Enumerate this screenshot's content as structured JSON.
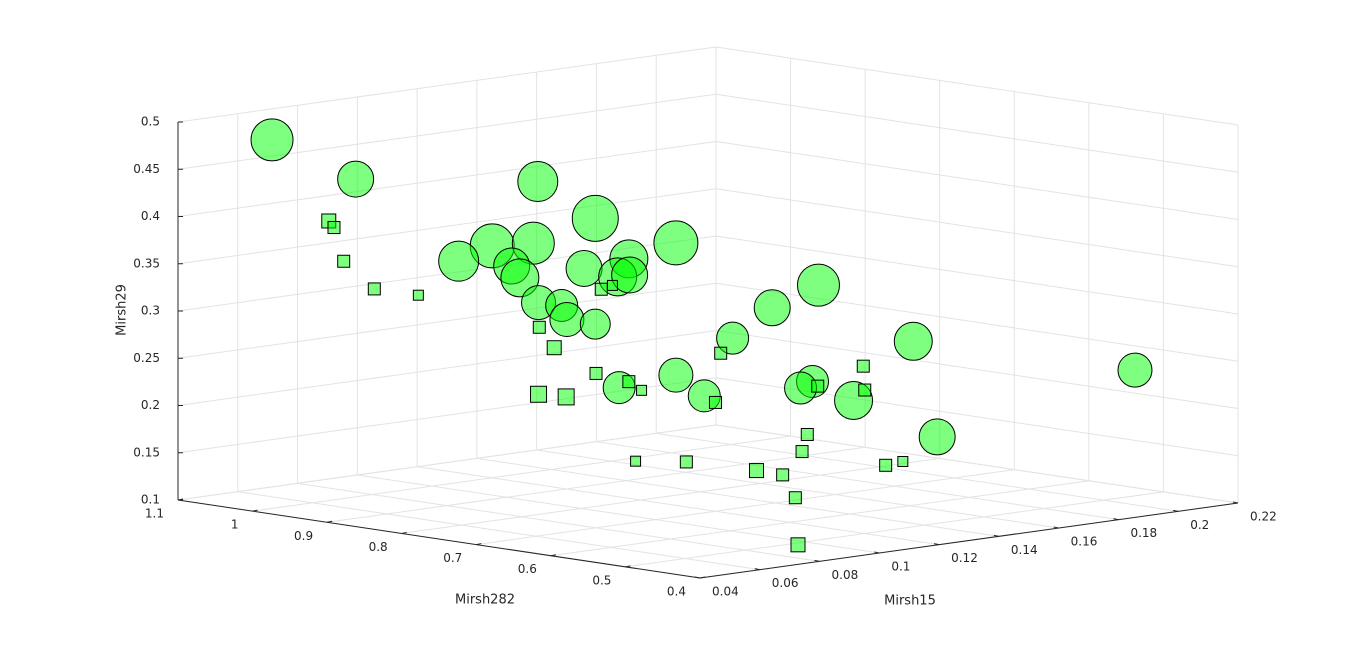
{
  "chart_data": {
    "type": "scatter3d",
    "xlabel": "Mirsh15",
    "ylabel": "Mirsh282",
    "zlabel": "Mirsh29",
    "xlim": [
      0.04,
      0.22
    ],
    "ylim": [
      0.4,
      1.1
    ],
    "zlim": [
      0.1,
      0.5
    ],
    "xticks": [
      0.04,
      0.06,
      0.08,
      0.1,
      0.12,
      0.14,
      0.16,
      0.18,
      0.2,
      0.22
    ],
    "yticks": [
      0.4,
      0.5,
      0.6,
      0.7,
      0.8,
      0.9,
      1,
      1.1
    ],
    "zticks": [
      0.1,
      0.15,
      0.2,
      0.25,
      0.3,
      0.35,
      0.4,
      0.45,
      0.5
    ],
    "grid": true,
    "series": [
      {
        "marker": "circle",
        "color": "#00ff00",
        "alpha": 0.5,
        "edgecolor": "#000000",
        "x": [
          0.052,
          0.067,
          0.099,
          0.109,
          0.091,
          0.098,
          0.123,
          0.085,
          0.115,
          0.094,
          0.107,
          0.096,
          0.113,
          0.115,
          0.148,
          0.14,
          0.099,
          0.103,
          0.104,
          0.109,
          0.133,
          0.165,
          0.123,
          0.113,
          0.147,
          0.145,
          0.128,
          0.154,
          0.204,
          0.169
        ],
        "y": [
          1.022,
          0.97,
          0.854,
          0.817,
          0.883,
          0.856,
          0.765,
          0.904,
          0.796,
          0.869,
          0.824,
          0.866,
          0.803,
          0.795,
          0.674,
          0.704,
          0.853,
          0.838,
          0.835,
          0.817,
          0.729,
          0.615,
          0.765,
          0.801,
          0.678,
          0.686,
          0.747,
          0.651,
          0.474,
          0.599
        ],
        "z": [
          0.485,
          0.443,
          0.44,
          0.401,
          0.372,
          0.375,
          0.375,
          0.356,
          0.358,
          0.351,
          0.348,
          0.338,
          0.339,
          0.341,
          0.33,
          0.306,
          0.312,
          0.309,
          0.294,
          0.289,
          0.274,
          0.27,
          0.235,
          0.222,
          0.228,
          0.221,
          0.213,
          0.208,
          0.239,
          0.169
        ],
        "sizes": [
          1764,
          1296,
          1600,
          2116,
          1936,
          1764,
          1936,
          1600,
          1444,
          1296,
          1296,
          1444,
          1444,
          1296,
          1764,
          1296,
          1156,
          1024,
          1156,
          900,
          1024,
          1444,
          1156,
          1024,
          1024,
          1024,
          1024,
          1444,
          1156,
          1296
        ]
      },
      {
        "marker": "square",
        "color": "#00ff00",
        "alpha": 0.5,
        "edgecolor": "#000000",
        "x": [
          0.062,
          0.063,
          0.065,
          0.07,
          0.078,
          0.112,
          0.11,
          0.099,
          0.102,
          0.131,
          0.109,
          0.115,
          0.117,
          0.099,
          0.104,
          0.13,
          0.156,
          0.148,
          0.156,
          0.146,
          0.145,
          0.116,
          0.125,
          0.137,
          0.142,
          0.144,
          0.091,
          0.16,
          0.163
        ],
        "y": [
          0.986,
          0.983,
          0.978,
          0.957,
          0.93,
          0.806,
          0.813,
          0.852,
          0.844,
          0.737,
          0.816,
          0.796,
          0.787,
          0.853,
          0.836,
          0.74,
          0.646,
          0.675,
          0.644,
          0.681,
          0.684,
          0.791,
          0.759,
          0.713,
          0.698,
          0.689,
          0.473,
          0.632,
          0.621
        ],
        "z": [
          0.399,
          0.392,
          0.356,
          0.327,
          0.32,
          0.33,
          0.326,
          0.286,
          0.264,
          0.258,
          0.237,
          0.228,
          0.219,
          0.215,
          0.212,
          0.206,
          0.244,
          0.223,
          0.219,
          0.172,
          0.154,
          0.144,
          0.143,
          0.134,
          0.129,
          0.105,
          0.104,
          0.139,
          0.143
        ],
        "sizes": [
          196,
          144,
          144,
          144,
          100,
          100,
          144,
          144,
          196,
          144,
          144,
          144,
          100,
          256,
          256,
          144,
          144,
          144,
          144,
          144,
          144,
          100,
          144,
          196,
          144,
          144,
          196,
          144,
          100
        ]
      }
    ]
  }
}
